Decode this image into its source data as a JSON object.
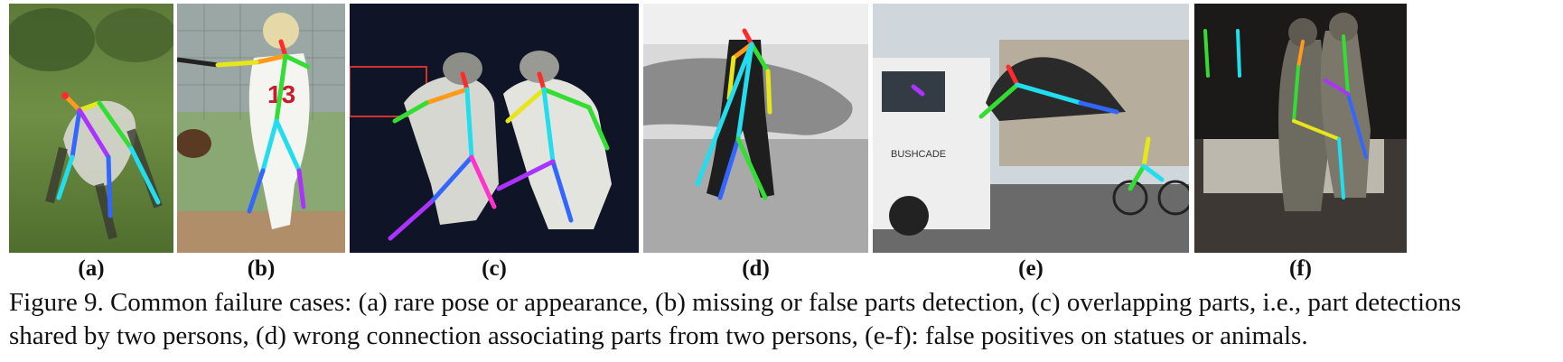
{
  "figure": {
    "panels": [
      {
        "label": "(a)",
        "scene": "person bending on grass field"
      },
      {
        "label": "(b)",
        "scene": "baseball batter"
      },
      {
        "label": "(c)",
        "scene": "two fencers"
      },
      {
        "label": "(d)",
        "scene": "two people carrying surfboard on beach"
      },
      {
        "label": "(e)",
        "scene": "truck, lion statue and cyclist"
      },
      {
        "label": "(f)",
        "scene": "bronze statue on bench"
      }
    ],
    "caption_line1": "Figure 9. Common failure cases: (a) rare pose or appearance, (b) missing or false parts detection, (c) overlapping parts, i.e., part detections",
    "caption_line2": "shared by two persons, (d) wrong connection associating parts from two persons, (e-f): false positives on statues or animals."
  },
  "colors": {
    "limb_red": "#ff2a2a",
    "limb_orange": "#ff9a1a",
    "limb_yellow": "#e6e61a",
    "limb_green": "#33dd33",
    "limb_cyan": "#22ddee",
    "limb_blue": "#3366ff",
    "limb_purple": "#aa33ff",
    "limb_magenta": "#ff33cc"
  }
}
